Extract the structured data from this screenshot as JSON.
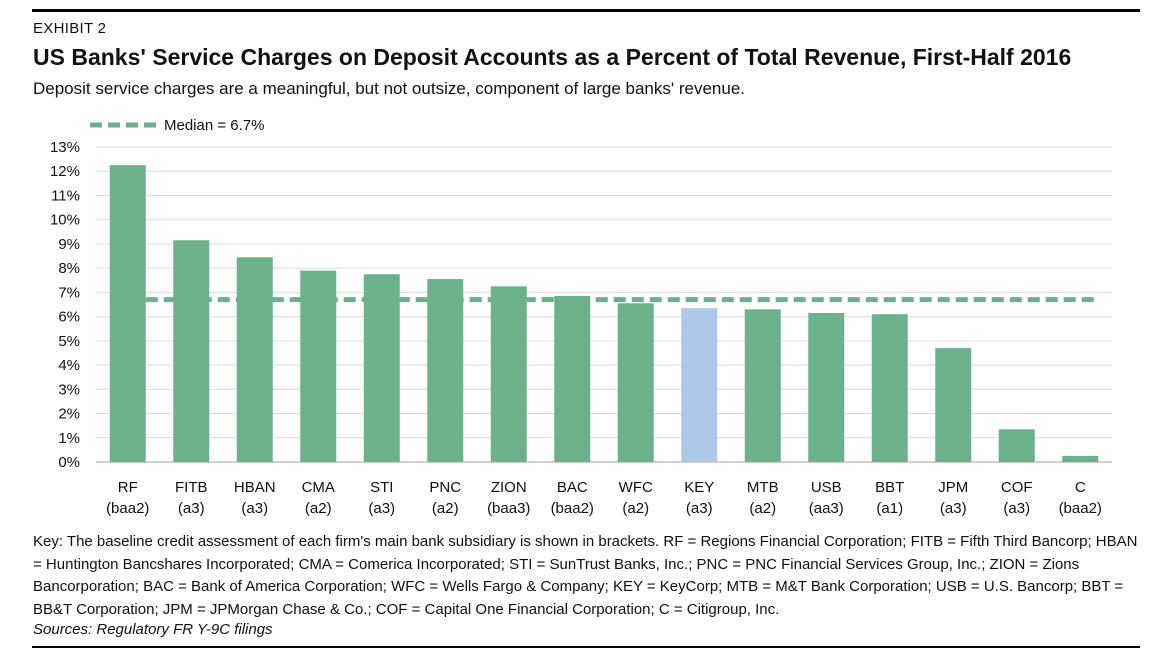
{
  "header": {
    "exhibit": "EXHIBIT 2",
    "title": "US Banks' Service Charges on Deposit Accounts as a Percent of Total Revenue, First-Half 2016",
    "subtitle": "Deposit service charges are a meaningful, but not outsize, component of large banks' revenue."
  },
  "chart_data": {
    "type": "bar",
    "title": "US Banks' Service Charges on Deposit Accounts as a Percent of Total Revenue, First-Half 2016",
    "xlabel": "",
    "ylabel": "",
    "ylim": [
      0,
      13
    ],
    "yticks": [
      "0%",
      "1%",
      "2%",
      "3%",
      "4%",
      "5%",
      "6%",
      "7%",
      "8%",
      "9%",
      "10%",
      "11%",
      "12%",
      "13%"
    ],
    "grid": true,
    "legend_position": "top-left",
    "categories": [
      "RF",
      "FITB",
      "HBAN",
      "CMA",
      "STI",
      "PNC",
      "ZION",
      "BAC",
      "WFC",
      "KEY",
      "MTB",
      "USB",
      "BBT",
      "JPM",
      "COF",
      "C"
    ],
    "ratings": [
      "(baa2)",
      "(a3)",
      "(a3)",
      "(a2)",
      "(a3)",
      "(a2)",
      "(baa3)",
      "(baa2)",
      "(a2)",
      "(a3)",
      "(a2)",
      "(aa3)",
      "(a1)",
      "(a3)",
      "(a3)",
      "(baa2)"
    ],
    "values": [
      12.25,
      9.15,
      8.45,
      7.9,
      7.75,
      7.55,
      7.25,
      6.85,
      6.55,
      6.35,
      6.3,
      6.15,
      6.1,
      4.7,
      1.35,
      0.25
    ],
    "highlight_category": "KEY",
    "reference_line": {
      "name": "Median = 6.7%",
      "value": 6.7
    },
    "colors": {
      "bar": "#6bb28a",
      "highlight": "#aec8ea",
      "median": "#6bb28a",
      "grid": "#d9d9d9",
      "axis": "#a6a6a6"
    }
  },
  "footer": {
    "key": "Key: The baseline credit assessment of each firm's main bank subsidiary is shown in brackets. RF = Regions Financial Corporation; FITB = Fifth Third Bancorp; HBAN = Huntington Bancshares Incorporated; CMA = Comerica Incorporated; STI = SunTrust Banks, Inc.; PNC = PNC Financial Services Group, Inc.; ZION = Zions Bancorporation; BAC = Bank of America Corporation; WFC = Wells Fargo & Company; KEY = KeyCorp; MTB = M&T Bank Corporation; USB = U.S. Bancorp; BBT = BB&T Corporation; JPM = JPMorgan Chase & Co.; COF = Capital One Financial Corporation; C = Citigroup, Inc.",
    "sources": "Sources: Regulatory FR Y-9C filings"
  }
}
